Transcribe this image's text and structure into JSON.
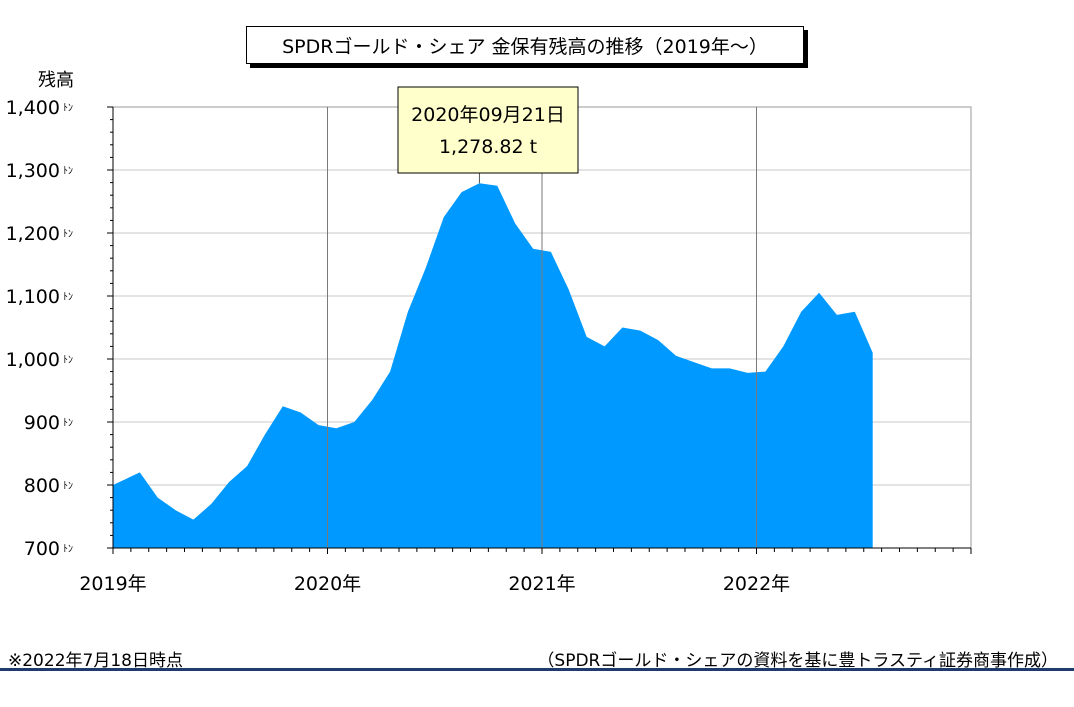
{
  "page": {
    "footnote": "※2022年7月18日時点",
    "source": "（SPDRゴールド・シェアの資料を基に豊トラスティ証券商事作成）"
  },
  "chart_data": {
    "type": "area",
    "title": "SPDRゴールド・シェア 金保有残高の推移（2019年～）",
    "ylabel": "残高",
    "unit": "ﾄﾝ",
    "ylim": [
      700,
      1400
    ],
    "yticks": [
      700,
      800,
      900,
      1000,
      1100,
      1200,
      1300,
      1400
    ],
    "ytick_labels": [
      "700",
      "800",
      "900",
      "1,000",
      "1,100",
      "1,200",
      "1,300",
      "1,400"
    ],
    "xlim": [
      "2019-01",
      "2022-12"
    ],
    "xtick_labels": [
      "2019年",
      "2020年",
      "2021年",
      "2022年"
    ],
    "grid": true,
    "color": "#0099ff",
    "annotation": {
      "date": "2020年09月21日",
      "value": "1,278.82 t",
      "at": "2020-09"
    },
    "x": [
      "2019-01",
      "2019-02",
      "2019-03",
      "2019-04",
      "2019-05",
      "2019-06",
      "2019-07",
      "2019-08",
      "2019-09",
      "2019-10",
      "2019-11",
      "2019-12",
      "2020-01",
      "2020-02",
      "2020-03",
      "2020-04",
      "2020-05",
      "2020-06",
      "2020-07",
      "2020-08",
      "2020-09",
      "2020-10",
      "2020-11",
      "2020-12",
      "2021-01",
      "2021-02",
      "2021-03",
      "2021-04",
      "2021-05",
      "2021-06",
      "2021-07",
      "2021-08",
      "2021-09",
      "2021-10",
      "2021-11",
      "2021-12",
      "2022-01",
      "2022-02",
      "2022-03",
      "2022-04",
      "2022-05",
      "2022-06",
      "2022-07"
    ],
    "values": [
      800,
      820,
      780,
      760,
      745,
      770,
      805,
      830,
      880,
      925,
      915,
      895,
      890,
      900,
      935,
      980,
      1075,
      1145,
      1225,
      1265,
      1279,
      1275,
      1215,
      1175,
      1170,
      1110,
      1035,
      1020,
      1050,
      1045,
      1030,
      1005,
      995,
      985,
      985,
      978,
      980,
      1020,
      1075,
      1105,
      1070,
      1075,
      1010
    ]
  }
}
